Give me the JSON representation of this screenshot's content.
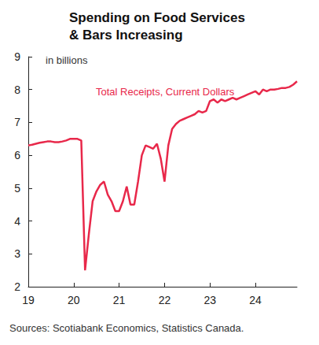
{
  "chart_data": {
    "type": "line",
    "title": "Spending on Food Services & Bars Increasing",
    "ylabel": "in billions",
    "annotations": [
      "Total Receipts, Current Dollars"
    ],
    "source": "Sources: Scotiabank Economics, Statistics Canada.",
    "categories": [
      "19",
      null,
      null,
      null,
      null,
      null,
      null,
      null,
      null,
      null,
      null,
      null,
      "20",
      null,
      null,
      null,
      null,
      null,
      null,
      null,
      null,
      null,
      null,
      null,
      "21",
      null,
      null,
      null,
      null,
      null,
      null,
      null,
      null,
      null,
      null,
      null,
      "22",
      null,
      null,
      null,
      null,
      null,
      null,
      null,
      null,
      null,
      null,
      null,
      "23",
      null,
      null,
      null,
      null,
      null,
      null,
      null,
      null,
      null,
      null,
      null,
      "24",
      null,
      null,
      null,
      null,
      null,
      null,
      null,
      null,
      null,
      null,
      null
    ],
    "values": [
      6.3,
      6.32,
      6.35,
      6.38,
      6.4,
      6.42,
      6.42,
      6.4,
      6.4,
      6.42,
      6.45,
      6.5,
      6.5,
      6.5,
      6.45,
      2.5,
      3.6,
      4.6,
      4.9,
      5.1,
      5.2,
      4.8,
      4.6,
      4.3,
      4.3,
      4.6,
      5.05,
      4.5,
      4.5,
      5.2,
      6.0,
      6.3,
      6.25,
      6.2,
      6.35,
      5.9,
      5.2,
      6.3,
      6.8,
      6.95,
      7.05,
      7.1,
      7.15,
      7.2,
      7.25,
      7.35,
      7.3,
      7.35,
      7.65,
      7.7,
      7.6,
      7.7,
      7.65,
      7.7,
      7.75,
      7.7,
      7.75,
      7.8,
      7.85,
      7.9,
      7.95,
      7.85,
      8.0,
      7.95,
      8.0,
      8.0,
      8.02,
      8.05,
      8.05,
      8.08,
      8.15,
      8.25
    ],
    "color": "#e8284a",
    "ylim": [
      2,
      9
    ],
    "yticks": [
      2,
      3,
      4,
      5,
      6,
      7,
      8,
      9
    ],
    "grid": false
  }
}
